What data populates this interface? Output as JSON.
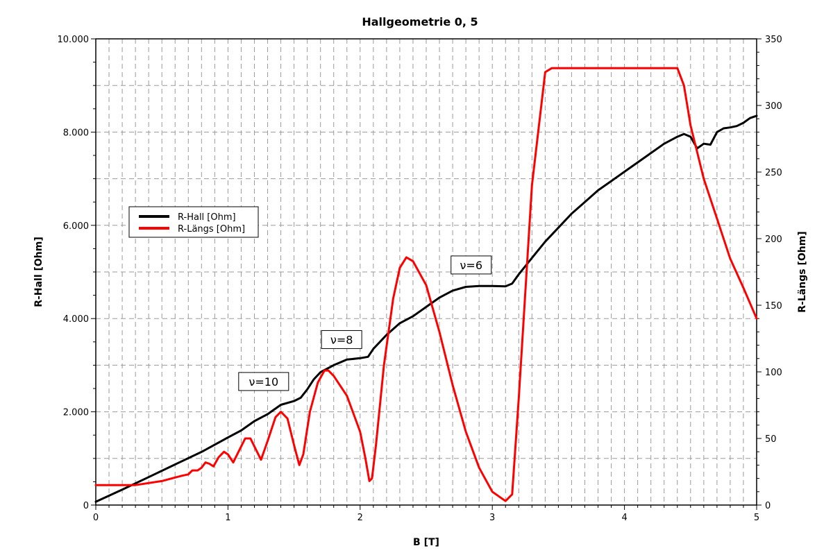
{
  "chart_data": {
    "type": "line",
    "title": "Hallgeometrie 0, 5",
    "xlabel": "B [T]",
    "ylabel_left": "R-Hall [Ohm]",
    "ylabel_right": "R-Längs [Ohm]",
    "xlim": [
      0,
      5
    ],
    "ylim_left": [
      0,
      10000
    ],
    "ylim_right": [
      0,
      350
    ],
    "x_ticks": [
      {
        "value": 0,
        "label": "0"
      },
      {
        "value": 1,
        "label": "1"
      },
      {
        "value": 2,
        "label": "2"
      },
      {
        "value": 3,
        "label": "3"
      },
      {
        "value": 4,
        "label": "4"
      },
      {
        "value": 5,
        "label": "5"
      }
    ],
    "y_left_ticks": [
      {
        "value": 0,
        "label": "0"
      },
      {
        "value": 2000,
        "label": "2.000"
      },
      {
        "value": 4000,
        "label": "4.000"
      },
      {
        "value": 6000,
        "label": "6.000"
      },
      {
        "value": 8000,
        "label": "8.000"
      },
      {
        "value": 10000,
        "label": "10.000"
      }
    ],
    "y_right_ticks": [
      {
        "value": 0,
        "label": "0"
      },
      {
        "value": 50,
        "label": "50"
      },
      {
        "value": 100,
        "label": "100"
      },
      {
        "value": 150,
        "label": "150"
      },
      {
        "value": 200,
        "label": "200"
      },
      {
        "value": 250,
        "label": "250"
      },
      {
        "value": 300,
        "label": "300"
      },
      {
        "value": 350,
        "label": "350"
      }
    ],
    "grid": true,
    "legend_position": "left, mid-height",
    "series": [
      {
        "name": "R-Hall [Ohm]",
        "axis": "left",
        "color": "#000000",
        "points": [
          [
            0,
            70
          ],
          [
            0.2,
            330
          ],
          [
            0.4,
            600
          ],
          [
            0.6,
            870
          ],
          [
            0.8,
            1140
          ],
          [
            1.0,
            1450
          ],
          [
            1.1,
            1600
          ],
          [
            1.2,
            1800
          ],
          [
            1.3,
            1950
          ],
          [
            1.4,
            2150
          ],
          [
            1.5,
            2230
          ],
          [
            1.55,
            2300
          ],
          [
            1.6,
            2480
          ],
          [
            1.65,
            2700
          ],
          [
            1.7,
            2850
          ],
          [
            1.8,
            3000
          ],
          [
            1.9,
            3120
          ],
          [
            2.0,
            3150
          ],
          [
            2.06,
            3180
          ],
          [
            2.1,
            3350
          ],
          [
            2.2,
            3650
          ],
          [
            2.3,
            3900
          ],
          [
            2.4,
            4050
          ],
          [
            2.5,
            4250
          ],
          [
            2.6,
            4450
          ],
          [
            2.7,
            4600
          ],
          [
            2.8,
            4680
          ],
          [
            2.9,
            4700
          ],
          [
            3.0,
            4700
          ],
          [
            3.1,
            4690
          ],
          [
            3.15,
            4750
          ],
          [
            3.2,
            4950
          ],
          [
            3.3,
            5300
          ],
          [
            3.4,
            5650
          ],
          [
            3.5,
            5950
          ],
          [
            3.6,
            6250
          ],
          [
            3.7,
            6500
          ],
          [
            3.8,
            6750
          ],
          [
            3.9,
            6950
          ],
          [
            4.0,
            7150
          ],
          [
            4.1,
            7350
          ],
          [
            4.2,
            7550
          ],
          [
            4.3,
            7750
          ],
          [
            4.4,
            7900
          ],
          [
            4.45,
            7960
          ],
          [
            4.5,
            7900
          ],
          [
            4.55,
            7650
          ],
          [
            4.6,
            7750
          ],
          [
            4.65,
            7730
          ],
          [
            4.7,
            8000
          ],
          [
            4.75,
            8080
          ],
          [
            4.8,
            8100
          ],
          [
            4.85,
            8130
          ],
          [
            4.9,
            8200
          ],
          [
            4.95,
            8300
          ],
          [
            5.0,
            8350
          ]
        ]
      },
      {
        "name": "R-Längs [Ohm]",
        "axis": "right",
        "color": "#ff0000",
        "points": [
          [
            0,
            15
          ],
          [
            0.3,
            15
          ],
          [
            0.5,
            18
          ],
          [
            0.65,
            22
          ],
          [
            0.7,
            23
          ],
          [
            0.73,
            26
          ],
          [
            0.77,
            26
          ],
          [
            0.8,
            28
          ],
          [
            0.83,
            32
          ],
          [
            0.86,
            31
          ],
          [
            0.89,
            29
          ],
          [
            0.93,
            36
          ],
          [
            0.97,
            40
          ],
          [
            1.0,
            38
          ],
          [
            1.04,
            32
          ],
          [
            1.08,
            40
          ],
          [
            1.13,
            50
          ],
          [
            1.17,
            50
          ],
          [
            1.21,
            42
          ],
          [
            1.25,
            34
          ],
          [
            1.3,
            48
          ],
          [
            1.36,
            66
          ],
          [
            1.4,
            70
          ],
          [
            1.45,
            65
          ],
          [
            1.5,
            45
          ],
          [
            1.54,
            30
          ],
          [
            1.57,
            38
          ],
          [
            1.62,
            70
          ],
          [
            1.68,
            92
          ],
          [
            1.73,
            101
          ],
          [
            1.76,
            101
          ],
          [
            1.8,
            97
          ],
          [
            1.9,
            82
          ],
          [
            2.0,
            55
          ],
          [
            2.04,
            35
          ],
          [
            2.07,
            18
          ],
          [
            2.09,
            20
          ],
          [
            2.12,
            45
          ],
          [
            2.18,
            105
          ],
          [
            2.25,
            155
          ],
          [
            2.3,
            178
          ],
          [
            2.35,
            186
          ],
          [
            2.4,
            183
          ],
          [
            2.5,
            165
          ],
          [
            2.6,
            130
          ],
          [
            2.7,
            90
          ],
          [
            2.8,
            55
          ],
          [
            2.9,
            28
          ],
          [
            3.0,
            10
          ],
          [
            3.1,
            3
          ],
          [
            3.15,
            8
          ],
          [
            3.2,
            80
          ],
          [
            3.3,
            240
          ],
          [
            3.4,
            325
          ],
          [
            3.45,
            328
          ],
          [
            4.4,
            328
          ],
          [
            4.45,
            315
          ],
          [
            4.5,
            285
          ],
          [
            4.55,
            265
          ],
          [
            4.6,
            245
          ],
          [
            4.7,
            215
          ],
          [
            4.8,
            185
          ],
          [
            4.9,
            163
          ],
          [
            5.0,
            140
          ]
        ]
      }
    ],
    "annotations": [
      {
        "text": "ν=10",
        "x": 1.27,
        "y": 2650
      },
      {
        "text": "ν=8",
        "x": 1.86,
        "y": 3550
      },
      {
        "text": "ν=6",
        "x": 2.84,
        "y": 5150
      }
    ]
  }
}
